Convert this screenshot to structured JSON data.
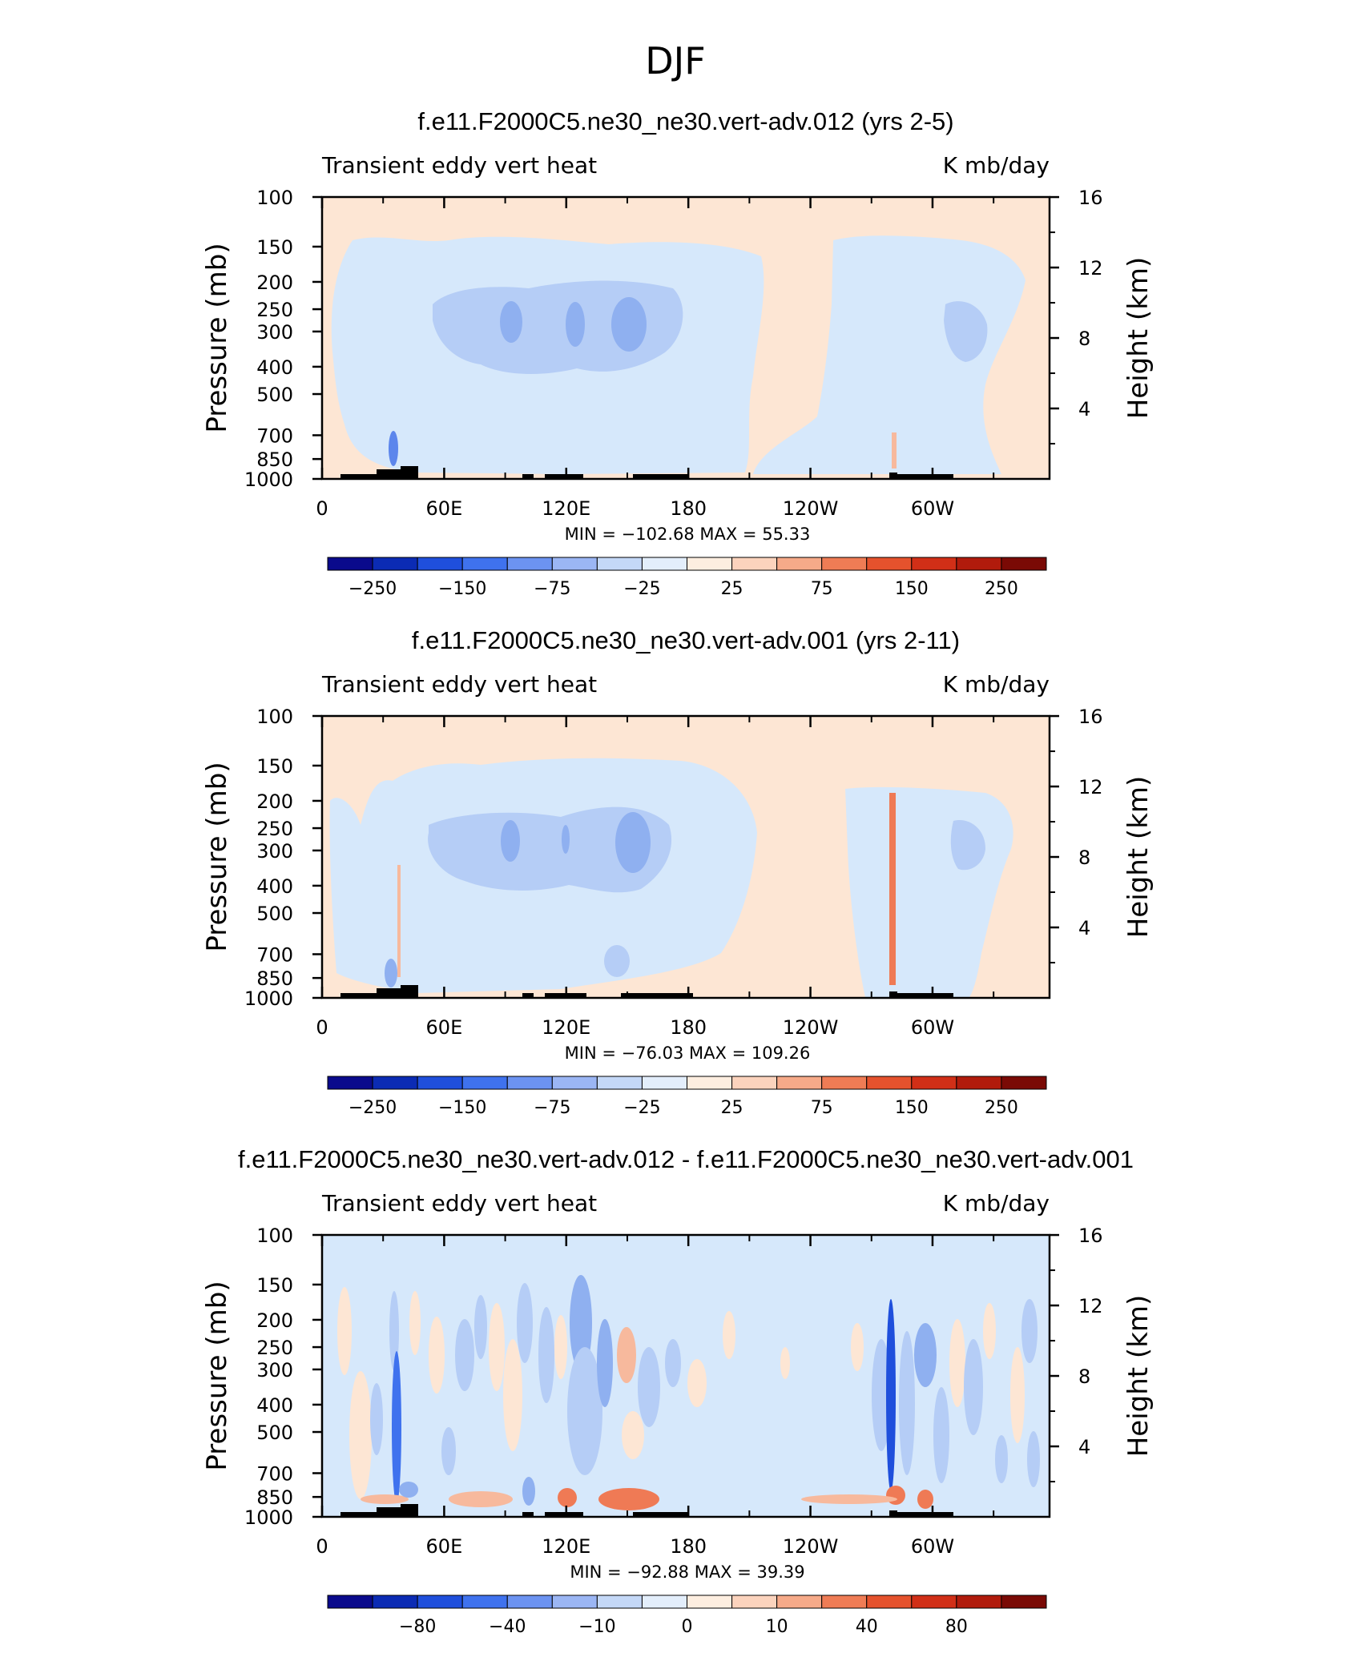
{
  "figure": {
    "title": "DJF"
  },
  "colors": {
    "mid_blue_light": "#d6e8fb",
    "mid_blue_2": "#b5cdf6",
    "mid_blue_3": "#8fb0f0",
    "mid_blue_4": "#5c86ec",
    "mid_orange_light": "#fde6d4",
    "mid_orange_2": "#f7b99d",
    "mid_orange_3": "#ef7a55",
    "land": "#000000"
  },
  "chart_data": [
    {
      "type": "heatmap",
      "title": "f.e11.F2000C5.ne30_ne30.vert-adv.012 (yrs 2-5)",
      "left_label": "Transient eddy vert heat",
      "right_label": "K mb/day",
      "ylabel": "Pressure (mb)",
      "ylabel_right": "Height (km)",
      "x_ticks": [
        "0",
        "60E",
        "120E",
        "180",
        "120W",
        "60W"
      ],
      "y_ticks": [
        "100",
        "150",
        "200",
        "250",
        "300",
        "400",
        "500",
        "700",
        "850",
        "1000"
      ],
      "y_right_ticks": [
        "4",
        "8",
        "12",
        "16"
      ],
      "stats": "MIN = −102.68   MAX =   55.33",
      "colorbar_labels": [
        "−250",
        "−150",
        "−75",
        "−25",
        "25",
        "75",
        "150",
        "250"
      ],
      "min": -102.68,
      "max": 55.33
    },
    {
      "type": "heatmap",
      "title": "f.e11.F2000C5.ne30_ne30.vert-adv.001 (yrs 2-11)",
      "left_label": "Transient eddy vert heat",
      "right_label": "K mb/day",
      "ylabel": "Pressure (mb)",
      "ylabel_right": "Height (km)",
      "x_ticks": [
        "0",
        "60E",
        "120E",
        "180",
        "120W",
        "60W"
      ],
      "y_ticks": [
        "100",
        "150",
        "200",
        "250",
        "300",
        "400",
        "500",
        "700",
        "850",
        "1000"
      ],
      "y_right_ticks": [
        "4",
        "8",
        "12",
        "16"
      ],
      "stats": "MIN = −76.03   MAX = 109.26",
      "colorbar_labels": [
        "−250",
        "−150",
        "−75",
        "−25",
        "25",
        "75",
        "150",
        "250"
      ],
      "min": -76.03,
      "max": 109.26
    },
    {
      "type": "heatmap",
      "title": "f.e11.F2000C5.ne30_ne30.vert-adv.012 - f.e11.F2000C5.ne30_ne30.vert-adv.001",
      "left_label": "Transient eddy vert heat",
      "right_label": "K mb/day",
      "ylabel": "Pressure (mb)",
      "ylabel_right": "Height (km)",
      "x_ticks": [
        "0",
        "60E",
        "120E",
        "180",
        "120W",
        "60W"
      ],
      "y_ticks": [
        "100",
        "150",
        "200",
        "250",
        "300",
        "400",
        "500",
        "700",
        "850",
        "1000"
      ],
      "y_right_ticks": [
        "4",
        "8",
        "12",
        "16"
      ],
      "stats": "MIN = −92.88   MAX =   39.39",
      "colorbar_labels": [
        "−80",
        "−40",
        "−10",
        "0",
        "10",
        "40",
        "80"
      ],
      "min": -92.88,
      "max": 39.39
    }
  ],
  "colorbar_colors": [
    "#0a0a8c",
    "#0b2bb4",
    "#1f4fdc",
    "#3f72ee",
    "#6c93f1",
    "#9bb6f4",
    "#c4d8f7",
    "#e3eefb",
    "#fdeee0",
    "#fbd3bd",
    "#f6aa89",
    "#ef7c55",
    "#e5522d",
    "#d12f17",
    "#b11b0c",
    "#7a0a05"
  ]
}
